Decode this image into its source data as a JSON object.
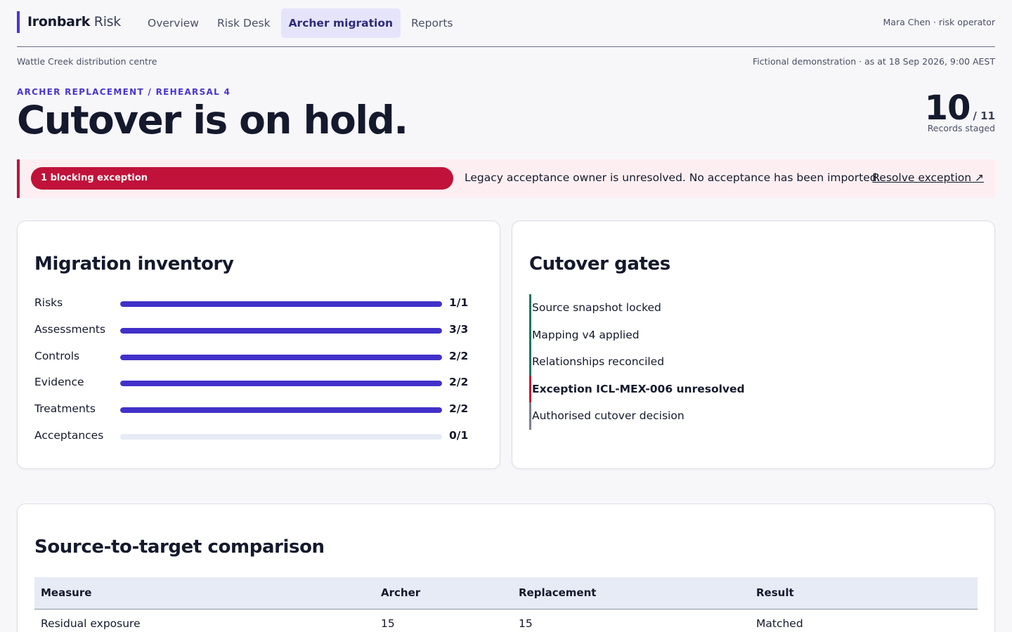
{
  "brand": {
    "name_bold": "Ironbark",
    "name_light": "Risk"
  },
  "nav": {
    "items": [
      {
        "label": "Overview",
        "active": false
      },
      {
        "label": "Risk Desk",
        "active": false
      },
      {
        "label": "Archer migration",
        "active": true
      },
      {
        "label": "Reports",
        "active": false
      }
    ]
  },
  "user": {
    "label": "Mara Chen · risk operator"
  },
  "subbar": {
    "site": "Wattle Creek distribution centre",
    "asat": "Fictional demonstration · as at 18 Sep 2026, 9:00 AEST"
  },
  "hero": {
    "eyebrow": "Archer replacement / Rehearsal 4",
    "title": "Cutover is on hold.",
    "stat_value": "10",
    "stat_total": "/ 11",
    "stat_label": "Records staged"
  },
  "alert": {
    "pill": "1 blocking exception",
    "message": "Legacy acceptance owner is unresolved. No acceptance has been imported.",
    "link": "Resolve exception ↗"
  },
  "inventory": {
    "title": "Migration inventory",
    "rows": [
      {
        "name": "Risks",
        "done": 1,
        "total": 1,
        "ratio": "1/1"
      },
      {
        "name": "Assessments",
        "done": 3,
        "total": 3,
        "ratio": "3/3"
      },
      {
        "name": "Controls",
        "done": 2,
        "total": 2,
        "ratio": "2/2"
      },
      {
        "name": "Evidence",
        "done": 2,
        "total": 2,
        "ratio": "2/2"
      },
      {
        "name": "Treatments",
        "done": 2,
        "total": 2,
        "ratio": "2/2"
      },
      {
        "name": "Acceptances",
        "done": 0,
        "total": 1,
        "ratio": "0/1"
      }
    ]
  },
  "gates": {
    "title": "Cutover gates",
    "items": [
      {
        "label": "Source snapshot locked",
        "state": "done"
      },
      {
        "label": "Mapping v4 applied",
        "state": "done"
      },
      {
        "label": "Relationships reconciled",
        "state": "done"
      },
      {
        "label": "Exception ICL-MEX-006 unresolved",
        "state": "blocked"
      },
      {
        "label": "Authorised cutover decision",
        "state": "pending"
      }
    ]
  },
  "comparison": {
    "title": "Source-to-target comparison",
    "headers": [
      "Measure",
      "Archer",
      "Replacement",
      "Result"
    ],
    "rows": [
      [
        "Residual exposure",
        "15",
        "15",
        "Matched"
      ]
    ]
  },
  "colors": {
    "accent": "#4936d1",
    "danger": "#c0123a",
    "success": "#1d7561",
    "pending": "#7a7f91"
  }
}
